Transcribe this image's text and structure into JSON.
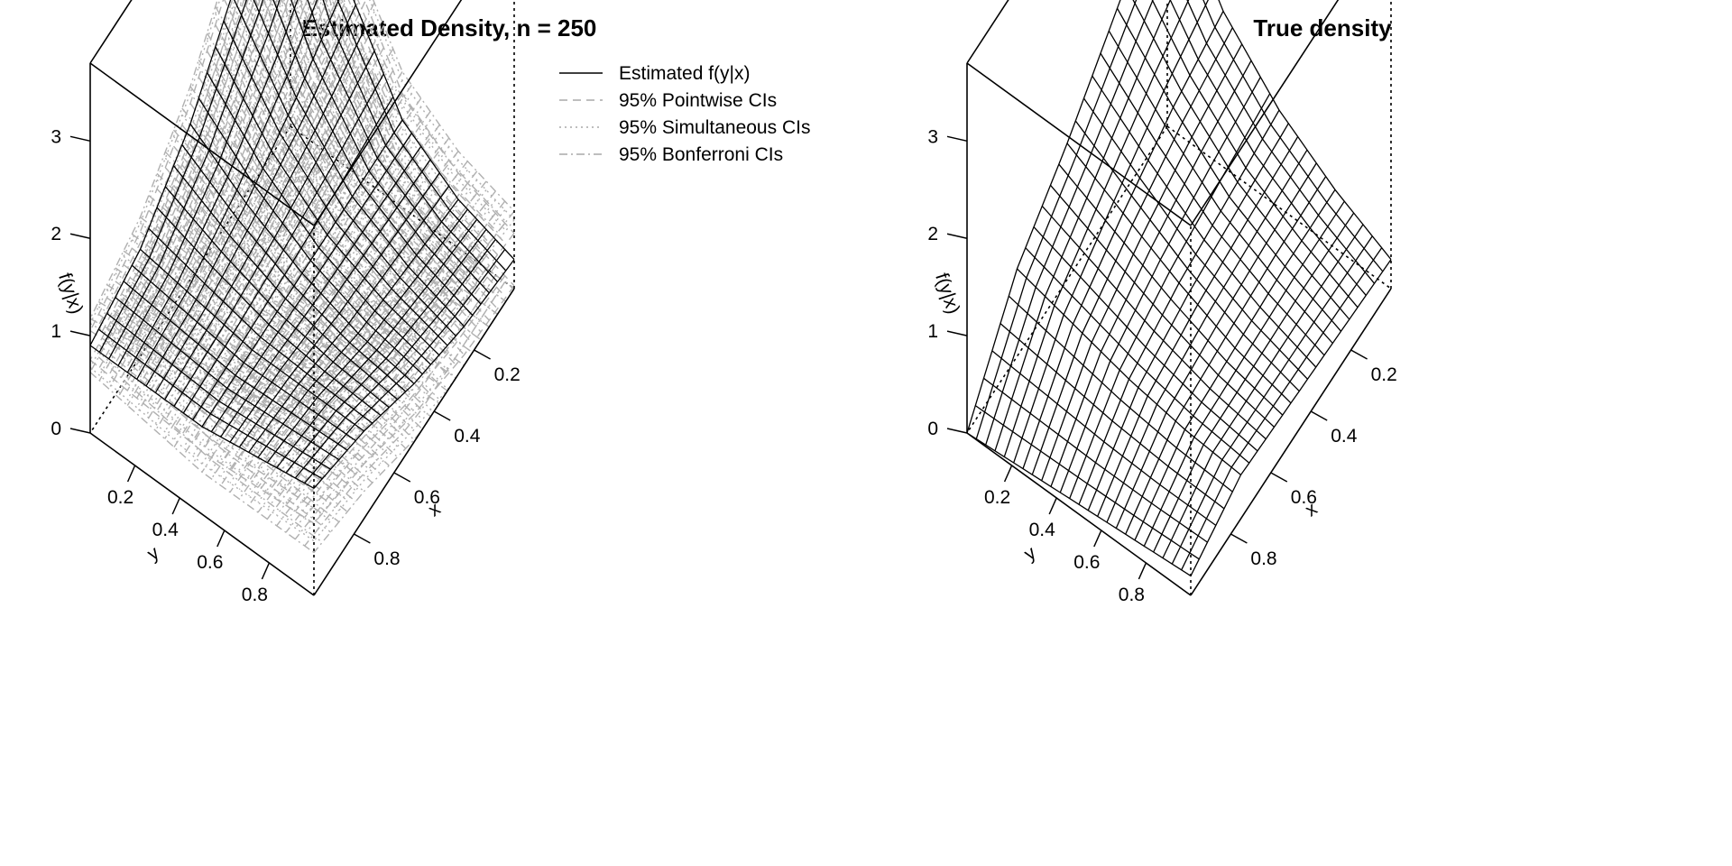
{
  "chart_data": [
    {
      "type": "surface3d",
      "title": "Estimated Density, n =  250",
      "xlabel": "x",
      "ylabel": "y",
      "zlabel": "f(y|x)",
      "x_ticks": [
        "0.2",
        "0.4",
        "0.6",
        "0.8"
      ],
      "y_ticks": [
        "0.2",
        "0.4",
        "0.6",
        "0.8"
      ],
      "z_ticks": [
        "0",
        "1",
        "2",
        "3"
      ],
      "xlim": [
        0,
        1
      ],
      "ylim": [
        0,
        1
      ],
      "zlim": [
        0,
        3.8
      ],
      "legend_position": "top-right",
      "series": [
        {
          "name": "Estimated f(y|x)",
          "color": "#000000",
          "dash": "solid"
        },
        {
          "name": "95% Pointwise CIs",
          "color": "#b0b0b0",
          "dash": "dashed"
        },
        {
          "name": "95% Simultaneous CIs",
          "color": "#b0b0b0",
          "dash": "dotted"
        },
        {
          "name": "95% Bonferroni CIs",
          "color": "#b0b0b0",
          "dash": "dotdash"
        }
      ],
      "surface_samples": {
        "x": [
          0.0,
          0.25,
          0.5,
          0.75,
          1.0
        ],
        "y": [
          0.0,
          0.25,
          0.5,
          0.75,
          1.0
        ],
        "z_estimated": [
          [
            3.5,
            1.9,
            0.9,
            0.5,
            0.3
          ],
          [
            2.4,
            1.5,
            0.9,
            0.6,
            0.4
          ],
          [
            1.6,
            1.2,
            0.9,
            0.7,
            0.6
          ],
          [
            1.1,
            1.0,
            0.9,
            0.9,
            0.9
          ],
          [
            0.9,
            0.9,
            0.9,
            1.0,
            1.1
          ]
        ]
      }
    },
    {
      "type": "surface3d",
      "title": "True density",
      "xlabel": "x",
      "ylabel": "y",
      "zlabel": "f(y|x)",
      "x_ticks": [
        "0.2",
        "0.4",
        "0.6",
        "0.8"
      ],
      "y_ticks": [
        "0.2",
        "0.4",
        "0.6",
        "0.8"
      ],
      "z_ticks": [
        "0",
        "1",
        "2",
        "3"
      ],
      "xlim": [
        0,
        1
      ],
      "ylim": [
        0,
        1
      ],
      "zlim": [
        0,
        3.8
      ],
      "series": [
        {
          "name": "",
          "color": "#000000",
          "dash": "solid"
        }
      ],
      "surface_samples": {
        "x": [
          0.0,
          0.25,
          0.5,
          0.75,
          1.0
        ],
        "y": [
          0.0,
          0.25,
          0.5,
          0.75,
          1.0
        ],
        "z_true": [
          [
            2.6,
            1.6,
            1.0,
            0.6,
            0.3
          ],
          [
            2.0,
            1.4,
            0.9,
            0.6,
            0.35
          ],
          [
            1.4,
            1.1,
            0.8,
            0.55,
            0.4
          ],
          [
            0.9,
            0.75,
            0.6,
            0.5,
            0.45
          ],
          [
            0.0,
            0.05,
            0.1,
            0.15,
            0.2
          ]
        ]
      }
    }
  ]
}
